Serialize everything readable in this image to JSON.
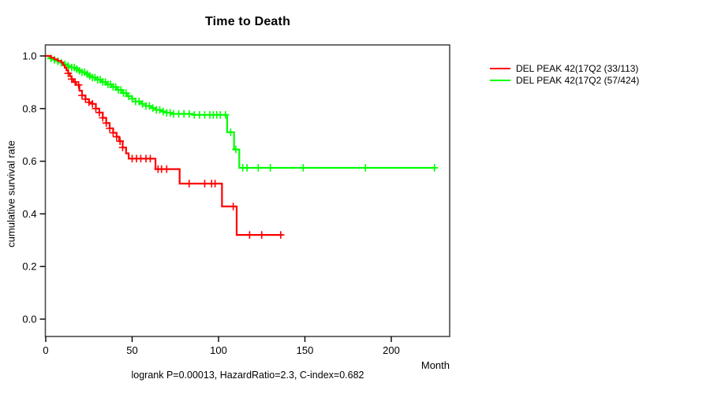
{
  "chart_data": {
    "type": "line",
    "subtype": "kaplan-meier-step",
    "title": "Time to Death",
    "xlabel": "Month",
    "ylabel": "cumulative survival rate",
    "footer": "logrank P=0.00013, HazardRatio=2.3, C-index=0.682",
    "xlim": [
      0,
      234
    ],
    "ylim": [
      0.0,
      1.0
    ],
    "xticks": [
      0,
      50,
      100,
      150,
      200
    ],
    "yticks": [
      0.0,
      0.2,
      0.4,
      0.6,
      0.8,
      1.0
    ],
    "grid": false,
    "legend_position": "right-outside",
    "axis_color": "#000000",
    "box_color": "#4a4a4a",
    "series": [
      {
        "name": "DEL PEAK 42(17Q2 (33/113)",
        "color": "#ff0000",
        "events_total": "33/113",
        "end_month": 137,
        "steps": [
          [
            0,
            1.0
          ],
          [
            3,
            0.993
          ],
          [
            5,
            0.987
          ],
          [
            7,
            0.981
          ],
          [
            9,
            0.975
          ],
          [
            10,
            0.965
          ],
          [
            11,
            0.955
          ],
          [
            12,
            0.945
          ],
          [
            13,
            0.934
          ],
          [
            14,
            0.923
          ],
          [
            15,
            0.912
          ],
          [
            16,
            0.901
          ],
          [
            17.5,
            0.89
          ],
          [
            19.5,
            0.868
          ],
          [
            21,
            0.85
          ],
          [
            23,
            0.836
          ],
          [
            25,
            0.824
          ],
          [
            27,
            0.818
          ],
          [
            29,
            0.8
          ],
          [
            31,
            0.785
          ],
          [
            33,
            0.765
          ],
          [
            35,
            0.745
          ],
          [
            37,
            0.725
          ],
          [
            39,
            0.708
          ],
          [
            41,
            0.693
          ],
          [
            42.5,
            0.676
          ],
          [
            44.5,
            0.652
          ],
          [
            46.5,
            0.63
          ],
          [
            48,
            0.61
          ],
          [
            63.5,
            0.57
          ],
          [
            77.5,
            0.515
          ],
          [
            102,
            0.428
          ],
          [
            110.5,
            0.32
          ]
        ],
        "censor_months": [
          13,
          15,
          17,
          19,
          21,
          23,
          25,
          27,
          29,
          31,
          33,
          35,
          37,
          39,
          41,
          43,
          44.5,
          50,
          52.5,
          55,
          58,
          60.5,
          65,
          67,
          70,
          83,
          92,
          96,
          98,
          108.5,
          118,
          125,
          136
        ]
      },
      {
        "name": "DEL PEAK 42(17Q2 (57/424)",
        "color": "#00ff00",
        "events_total": "57/424",
        "end_month": 226,
        "steps": [
          [
            0,
            1.0
          ],
          [
            2,
            0.995
          ],
          [
            3,
            0.99
          ],
          [
            5,
            0.985
          ],
          [
            7,
            0.98
          ],
          [
            9,
            0.974
          ],
          [
            11,
            0.968
          ],
          [
            13,
            0.962
          ],
          [
            15,
            0.956
          ],
          [
            17,
            0.95
          ],
          [
            19,
            0.944
          ],
          [
            21,
            0.938
          ],
          [
            23,
            0.931
          ],
          [
            25,
            0.924
          ],
          [
            27,
            0.918
          ],
          [
            29,
            0.91
          ],
          [
            32,
            0.901
          ],
          [
            35,
            0.892
          ],
          [
            38,
            0.882
          ],
          [
            41,
            0.871
          ],
          [
            44,
            0.859
          ],
          [
            47,
            0.847
          ],
          [
            50,
            0.837
          ],
          [
            52,
            0.827
          ],
          [
            55,
            0.818
          ],
          [
            58,
            0.81
          ],
          [
            61,
            0.802
          ],
          [
            64,
            0.795
          ],
          [
            67,
            0.789
          ],
          [
            70,
            0.784
          ],
          [
            73,
            0.78
          ],
          [
            85,
            0.776
          ],
          [
            105,
            0.71
          ],
          [
            109,
            0.645
          ],
          [
            112,
            0.575
          ]
        ],
        "censor_months": [
          3,
          5,
          7,
          9,
          11,
          13,
          15,
          16.5,
          18,
          19.5,
          21,
          22.5,
          24,
          25.5,
          27,
          28.5,
          30,
          31.5,
          33,
          34.5,
          36,
          37.5,
          39,
          40.5,
          42,
          43.5,
          45,
          46.5,
          48,
          50,
          52,
          54,
          56,
          58,
          60,
          62,
          64,
          66,
          68,
          70,
          72,
          74,
          77,
          80,
          83,
          86,
          89,
          92,
          95,
          97,
          99,
          101,
          104,
          107,
          110,
          114,
          116.5,
          123,
          130,
          149,
          185,
          225
        ]
      }
    ]
  },
  "legend": {
    "items": [
      {
        "label": "DEL PEAK 42(17Q2 (33/113)"
      },
      {
        "label": "DEL PEAK 42(17Q2 (57/424)"
      }
    ]
  }
}
